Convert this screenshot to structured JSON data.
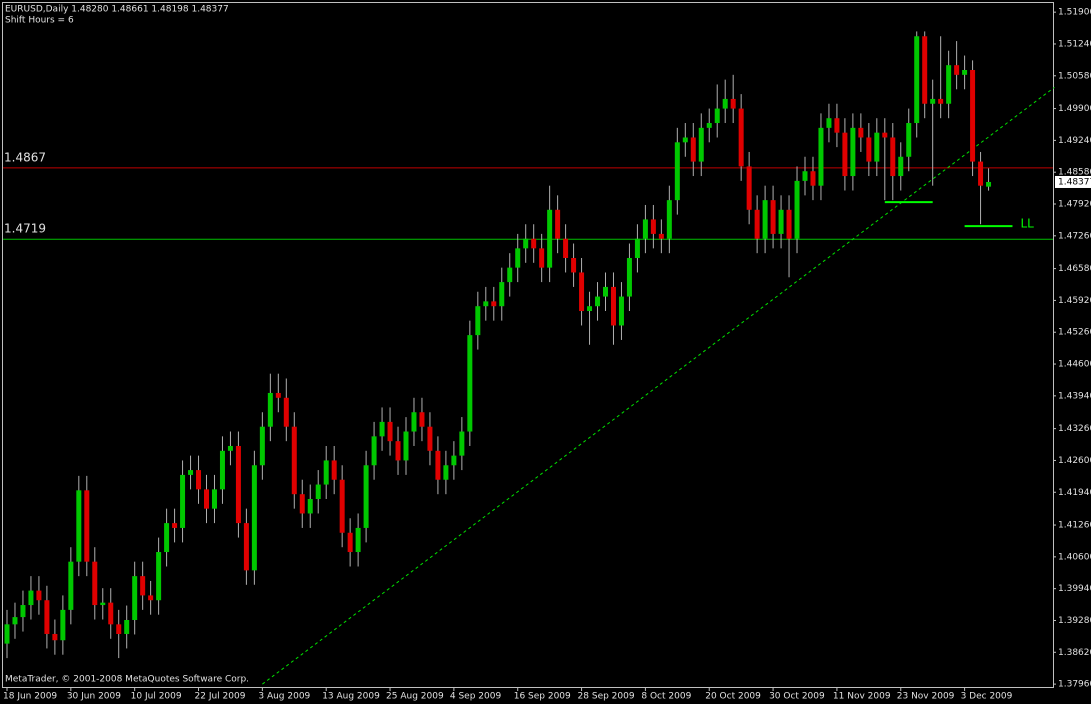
{
  "chart_data": {
    "type": "candlestick",
    "header": "EURUSD,Daily  1.48280 1.48661 1.48198 1.48377",
    "subheader": "Shift Hours = 6",
    "footer": "MetaTrader, © 2001-2008 MetaQuotes Software Corp.",
    "up_color": "#00c800",
    "down_color": "#e00000",
    "wick_color": "#b0b0b0",
    "ylim": [
      1.379,
      1.5209
    ],
    "yticks": [
      {
        "value": 1.3796,
        "label": "1.37960"
      },
      {
        "value": 1.3862,
        "label": "1.38620"
      },
      {
        "value": 1.3928,
        "label": "1.39280"
      },
      {
        "value": 1.3994,
        "label": "1.39940"
      },
      {
        "value": 1.406,
        "label": "1.40600"
      },
      {
        "value": 1.4126,
        "label": "1.41260"
      },
      {
        "value": 1.4194,
        "label": "1.41940"
      },
      {
        "value": 1.426,
        "label": "1.42600"
      },
      {
        "value": 1.4326,
        "label": "1.43260"
      },
      {
        "value": 1.4394,
        "label": "1.43940"
      },
      {
        "value": 1.446,
        "label": "1.44600"
      },
      {
        "value": 1.4526,
        "label": "1.45260"
      },
      {
        "value": 1.4592,
        "label": "1.45920"
      },
      {
        "value": 1.4658,
        "label": "1.46580"
      },
      {
        "value": 1.4726,
        "label": "1.47260"
      },
      {
        "value": 1.4792,
        "label": "1.47920"
      },
      {
        "value": 1.4858,
        "label": "1.48580"
      },
      {
        "value": 1.4924,
        "label": "1.49240"
      },
      {
        "value": 1.499,
        "label": "1.49900"
      },
      {
        "value": 1.5058,
        "label": "1.50580"
      },
      {
        "value": 1.5124,
        "label": "1.51240"
      },
      {
        "value": 1.519,
        "label": "1.51900"
      }
    ],
    "categories": [
      "18 Jun 2009",
      null,
      null,
      null,
      null,
      null,
      null,
      null,
      "30 Jun 2009",
      null,
      null,
      null,
      null,
      null,
      null,
      null,
      "10 Jul 2009",
      null,
      null,
      null,
      null,
      null,
      null,
      null,
      "22 Jul 2009",
      null,
      null,
      null,
      null,
      null,
      null,
      null,
      "3 Aug 2009",
      null,
      null,
      null,
      null,
      null,
      null,
      null,
      "13 Aug 2009",
      null,
      null,
      null,
      null,
      null,
      null,
      null,
      "25 Aug 2009",
      null,
      null,
      null,
      null,
      null,
      null,
      null,
      "4 Sep 2009",
      null,
      null,
      null,
      null,
      null,
      null,
      null,
      "16 Sep 2009",
      null,
      null,
      null,
      null,
      null,
      null,
      null,
      "28 Sep 2009",
      null,
      null,
      null,
      null,
      null,
      null,
      null,
      "8 Oct 2009",
      null,
      null,
      null,
      null,
      null,
      null,
      null,
      "20 Oct 2009",
      null,
      null,
      null,
      null,
      null,
      null,
      null,
      "30 Oct 2009",
      null,
      null,
      null,
      null,
      null,
      null,
      null,
      "11 Nov 2009",
      null,
      null,
      null,
      null,
      null,
      null,
      null,
      "23 Nov 2009",
      null,
      null,
      null,
      null,
      null,
      null,
      null,
      "3 Dec 2009",
      null,
      null,
      null
    ],
    "open": [
      1.388,
      1.392,
      1.3935,
      1.396,
      1.399,
      1.397,
      1.39,
      1.3887,
      1.395,
      1.405,
      1.4198,
      1.405,
      1.396,
      1.3965,
      1.392,
      1.39,
      1.3929,
      1.402,
      1.398,
      1.397,
      1.407,
      1.413,
      1.412,
      1.423,
      1.424,
      1.42,
      1.416,
      1.42,
      1.428,
      1.429,
      1.413,
      1.4032,
      1.425,
      1.433,
      1.44,
      1.439,
      1.433,
      1.419,
      1.415,
      1.418,
      1.421,
      1.426,
      1.422,
      1.411,
      1.407,
      1.412,
      1.425,
      1.431,
      1.434,
      1.43,
      1.426,
      1.432,
      1.436,
      1.433,
      1.428,
      1.422,
      1.425,
      1.427,
      1.432,
      1.452,
      1.458,
      1.459,
      1.458,
      1.463,
      1.466,
      1.47,
      1.472,
      1.47,
      1.466,
      1.478,
      1.472,
      1.468,
      1.465,
      1.457,
      1.458,
      1.46,
      1.462,
      1.454,
      1.46,
      1.468,
      1.472,
      1.476,
      1.473,
      1.472,
      1.48,
      1.492,
      1.493,
      1.488,
      1.495,
      1.496,
      1.499,
      1.501,
      1.499,
      1.487,
      1.478,
      1.472,
      1.48,
      1.473,
      1.478,
      1.472,
      1.484,
      1.486,
      1.483,
      1.495,
      1.497,
      1.494,
      1.485,
      1.495,
      1.493,
      1.488,
      1.494,
      1.493,
      1.485,
      1.489,
      1.496,
      1.514,
      1.5,
      1.501,
      1.5,
      1.508,
      1.506,
      1.507,
      1.488,
      1.4828
    ],
    "high": [
      1.395,
      1.3965,
      1.399,
      1.402,
      1.402,
      1.4,
      1.393,
      1.398,
      1.408,
      1.4228,
      1.4228,
      1.408,
      1.3995,
      1.3995,
      1.395,
      1.3959,
      1.405,
      1.405,
      1.401,
      1.41,
      1.416,
      1.416,
      1.426,
      1.427,
      1.427,
      1.423,
      1.423,
      1.431,
      1.432,
      1.432,
      1.416,
      1.428,
      1.436,
      1.444,
      1.444,
      1.443,
      1.436,
      1.422,
      1.421,
      1.424,
      1.429,
      1.429,
      1.425,
      1.414,
      1.415,
      1.428,
      1.434,
      1.437,
      1.437,
      1.433,
      1.435,
      1.439,
      1.439,
      1.436,
      1.431,
      1.428,
      1.43,
      1.435,
      1.455,
      1.461,
      1.462,
      1.462,
      1.466,
      1.469,
      1.473,
      1.475,
      1.475,
      1.473,
      1.483,
      1.481,
      1.475,
      1.471,
      1.468,
      1.461,
      1.463,
      1.465,
      1.465,
      1.463,
      1.471,
      1.475,
      1.479,
      1.479,
      1.476,
      1.483,
      1.495,
      1.496,
      1.496,
      1.498,
      1.499,
      1.504,
      1.505,
      1.506,
      1.502,
      1.49,
      1.481,
      1.483,
      1.483,
      1.481,
      1.481,
      1.487,
      1.489,
      1.489,
      1.498,
      1.5,
      1.5,
      1.497,
      1.498,
      1.498,
      1.496,
      1.497,
      1.497,
      1.496,
      1.492,
      1.499,
      1.515,
      1.515,
      1.505,
      1.514,
      1.511,
      1.513,
      1.51,
      1.509,
      1.49,
      1.48661
    ],
    "low": [
      1.385,
      1.389,
      1.3905,
      1.393,
      1.394,
      1.387,
      1.3857,
      1.3857,
      1.392,
      1.402,
      1.402,
      1.393,
      1.393,
      1.389,
      1.385,
      1.387,
      1.3899,
      1.395,
      1.394,
      1.394,
      1.404,
      1.409,
      1.409,
      1.42,
      1.417,
      1.413,
      1.413,
      1.417,
      1.425,
      1.41,
      1.4002,
      1.4002,
      1.422,
      1.43,
      1.436,
      1.43,
      1.416,
      1.412,
      1.412,
      1.415,
      1.418,
      1.419,
      1.408,
      1.404,
      1.404,
      1.409,
      1.422,
      1.428,
      1.427,
      1.423,
      1.423,
      1.429,
      1.43,
      1.425,
      1.419,
      1.419,
      1.422,
      1.424,
      1.429,
      1.449,
      1.455,
      1.455,
      1.455,
      1.46,
      1.463,
      1.467,
      1.467,
      1.463,
      1.463,
      1.469,
      1.465,
      1.462,
      1.454,
      1.45,
      1.455,
      1.457,
      1.45,
      1.451,
      1.457,
      1.465,
      1.469,
      1.47,
      1.469,
      1.469,
      1.477,
      1.489,
      1.485,
      1.485,
      1.492,
      1.493,
      1.496,
      1.496,
      1.484,
      1.475,
      1.469,
      1.469,
      1.47,
      1.47,
      1.464,
      1.469,
      1.481,
      1.48,
      1.48,
      1.492,
      1.491,
      1.482,
      1.482,
      1.49,
      1.485,
      1.485,
      1.48,
      1.48,
      1.482,
      1.486,
      1.493,
      1.497,
      1.483,
      1.497,
      1.497,
      1.503,
      1.503,
      1.485,
      1.475,
      1.48198
    ],
    "close": [
      1.392,
      1.3935,
      1.396,
      1.399,
      1.397,
      1.39,
      1.3887,
      1.395,
      1.405,
      1.4198,
      1.405,
      1.396,
      1.3965,
      1.392,
      1.39,
      1.3929,
      1.402,
      1.398,
      1.397,
      1.407,
      1.413,
      1.412,
      1.423,
      1.424,
      1.42,
      1.416,
      1.42,
      1.428,
      1.429,
      1.413,
      1.4032,
      1.425,
      1.433,
      1.44,
      1.439,
      1.433,
      1.419,
      1.415,
      1.418,
      1.421,
      1.426,
      1.422,
      1.411,
      1.407,
      1.412,
      1.425,
      1.431,
      1.434,
      1.43,
      1.426,
      1.432,
      1.436,
      1.433,
      1.428,
      1.422,
      1.425,
      1.427,
      1.432,
      1.452,
      1.458,
      1.459,
      1.458,
      1.463,
      1.466,
      1.47,
      1.472,
      1.47,
      1.466,
      1.478,
      1.472,
      1.468,
      1.465,
      1.457,
      1.458,
      1.46,
      1.462,
      1.454,
      1.46,
      1.468,
      1.472,
      1.476,
      1.473,
      1.472,
      1.48,
      1.492,
      1.493,
      1.488,
      1.495,
      1.496,
      1.499,
      1.501,
      1.499,
      1.487,
      1.478,
      1.472,
      1.48,
      1.473,
      1.478,
      1.472,
      1.484,
      1.486,
      1.483,
      1.495,
      1.497,
      1.494,
      1.485,
      1.495,
      1.493,
      1.488,
      1.494,
      1.493,
      1.485,
      1.489,
      1.496,
      1.514,
      1.5,
      1.501,
      1.5,
      1.508,
      1.506,
      1.507,
      1.488,
      1.483,
      1.48377
    ],
    "levels": [
      {
        "value": 1.4867,
        "color": "#c00000"
      },
      {
        "value": 1.4719,
        "color": "#00c000"
      }
    ],
    "trendline": {
      "x": [
        32,
        131.25
      ],
      "y": [
        1.3796,
        1.5034
      ],
      "color": "#00e000"
    },
    "supports": [
      {
        "value": 1.4796,
        "x": [
          110,
          116
        ]
      },
      {
        "value": 1.4746,
        "x": [
          120,
          126
        ],
        "label": "LL"
      }
    ],
    "support_color": "#00ff00"
  }
}
